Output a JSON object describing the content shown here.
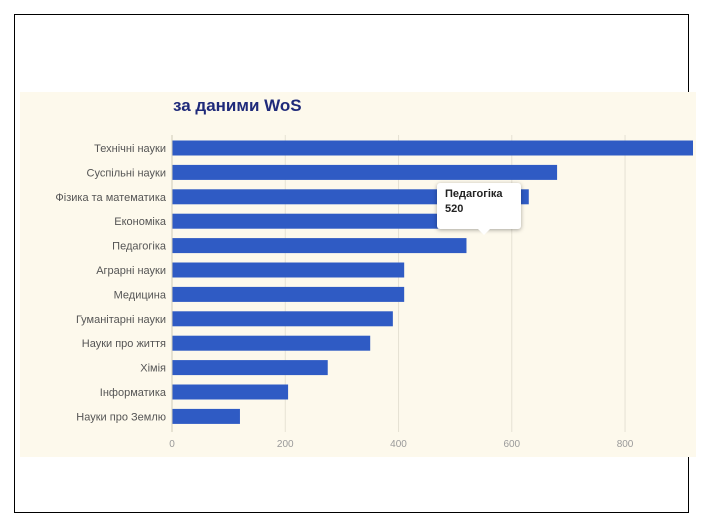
{
  "chart_data": {
    "type": "bar",
    "orientation": "horizontal",
    "title": "за даними WoS",
    "categories": [
      "Технічні науки",
      "Суспільні науки",
      "Фізика та математика",
      "Економіка",
      "Педагогіка",
      "Аграрні науки",
      "Медицина",
      "Гуманітарні науки",
      "Науки про життя",
      "Хімія",
      "Інформатика",
      "Науки про Землю"
    ],
    "values": [
      920,
      680,
      630,
      600,
      520,
      410,
      410,
      390,
      350,
      275,
      205,
      120
    ],
    "xlim": [
      0,
      920
    ],
    "xticks": [
      "0",
      "200",
      "400",
      "600",
      "800"
    ],
    "xtick_values": [
      0,
      200,
      400,
      600,
      800
    ],
    "grid": true,
    "bar_color": "#2f5bc4",
    "background_color": "#fdf9ec",
    "tooltip": {
      "category": "Педагогіка",
      "value": "520"
    }
  }
}
